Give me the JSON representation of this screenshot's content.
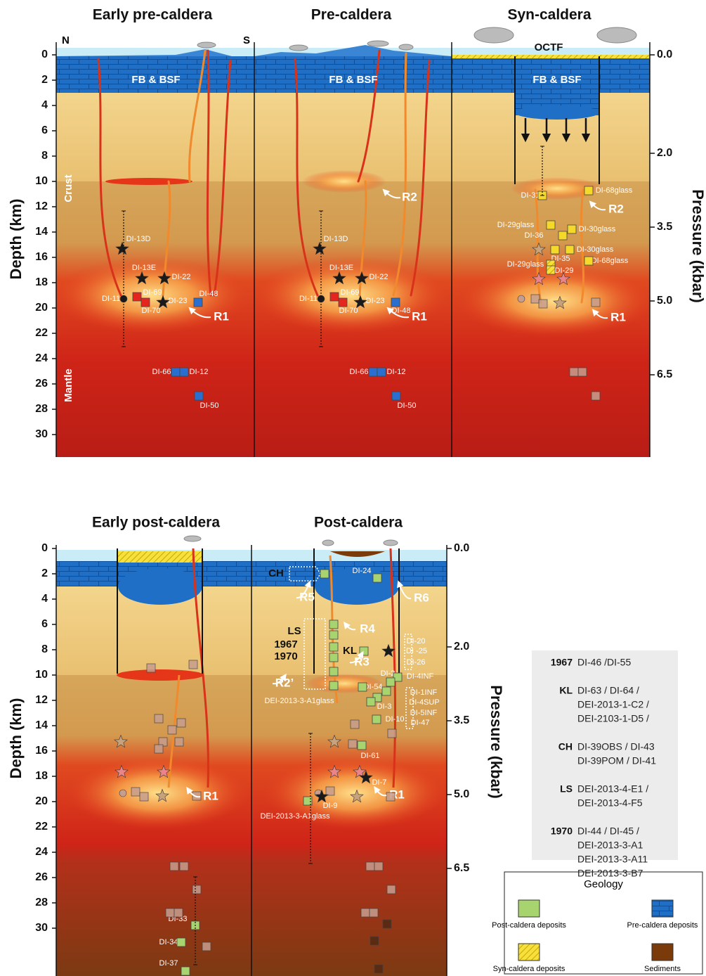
{
  "top": {
    "titles": [
      "Early pre-caldera",
      "Pre-caldera",
      "Syn-caldera"
    ],
    "compass": [
      "N",
      "S"
    ],
    "depth_axis": {
      "label": "Depth (km)",
      "ticks": [
        0,
        2,
        4,
        6,
        8,
        10,
        12,
        14,
        16,
        18,
        20,
        22,
        24,
        26,
        28,
        30
      ]
    },
    "pressure_axis": {
      "label": "Pressure (kbar)",
      "ticks": [
        {
          "value": 0,
          "label": "0.0"
        },
        {
          "value": 2,
          "label": "2.0"
        },
        {
          "value": 3.5,
          "label": "3.5"
        },
        {
          "value": 5,
          "label": "5.0"
        },
        {
          "value": 6.5,
          "label": "6.5"
        }
      ]
    },
    "panel_labels": [
      [
        "FB & BSF",
        "Crust",
        "Mantle",
        "DI-13D",
        "DI-13E",
        "DI-22",
        "DI-69",
        "DI-11",
        "DI-70",
        "DI-23",
        "DI-48",
        "R1",
        "DI-66",
        "DI-12",
        "DI-50"
      ],
      [
        "FB & BSF",
        "R2",
        "DI-13D",
        "DI-13E",
        "DI-22",
        "DI-69",
        "DI-11",
        "DI-70",
        "DI-23",
        "DI-48",
        "R1",
        "DI-66",
        "DI-12",
        "DI-50"
      ],
      [
        "OCTF",
        "FB & BSF",
        "DI-68glass",
        "DI-31",
        "R2",
        "DI-29glass",
        "DI-30glass",
        "DI-36",
        "DI-30glass",
        "DI-35",
        "DI-68glass",
        "DI-29glass",
        "DI-29",
        "R1"
      ]
    ]
  },
  "bottom": {
    "titles": [
      "Early post-caldera",
      "Post-caldera"
    ],
    "depth_axis": {
      "label": "Depth (km)",
      "ticks": [
        0,
        2,
        4,
        6,
        8,
        10,
        12,
        14,
        16,
        18,
        20,
        22,
        24,
        26,
        28,
        30
      ]
    },
    "pressure_axis": {
      "label": "Pressure (kbar)",
      "ticks": [
        {
          "value": 0,
          "label": "0.0"
        },
        {
          "value": 2,
          "label": "2.0"
        },
        {
          "value": 3.5,
          "label": "3.5"
        },
        {
          "value": 5,
          "label": "5.0"
        },
        {
          "value": 6.5,
          "label": "6.5"
        }
      ]
    },
    "panel_labels": [
      [
        "R1",
        "DI-33",
        "DI-34",
        "DI-37"
      ],
      [
        "CH",
        "DI-24",
        "R5",
        "R6",
        "LS",
        "1967",
        "1970",
        "R4",
        "KL",
        "R3",
        "DI-20",
        "DI -25",
        "DI-26",
        "DI-2",
        "DI-4INF",
        "R2’",
        "DI-54",
        "DEI-2013-3-A1glass",
        "DI-1INF",
        "DI-4SUP",
        "DI-5INF",
        "DI-47",
        "DI-3",
        "DI-10",
        "DI-61",
        "DI-7",
        "DI-9",
        "DEI-2013-3-A1glass",
        "R1"
      ]
    ]
  },
  "legend": {
    "rows": [
      {
        "key": "1967",
        "lines": [
          "DI-46 /DI-55"
        ]
      },
      {
        "key": "KL",
        "lines": [
          "DI-63 / DI-64 /",
          "DEI-2013-1-C2 /",
          "DEI-2103-1-D5 /"
        ]
      },
      {
        "key": "CH",
        "lines": [
          "DI-39OBS / DI-43",
          "DI-39POM / DI-41"
        ]
      },
      {
        "key": "LS",
        "lines": [
          "DEI-2013-4-E1 /",
          "DEI-2013-4-F5"
        ]
      },
      {
        "key": "1970",
        "lines": [
          "DI-44 / DI-45 /",
          "DEI-2013-3-A1",
          "DEI-2013-3-A11",
          "DEI-2013-3-B7"
        ]
      }
    ]
  },
  "geology": {
    "title": "Geology",
    "items": [
      "Post-caldera deposits",
      "Pre-caldera deposits",
      "Syn-caldera deposits",
      "Sediments"
    ]
  }
}
